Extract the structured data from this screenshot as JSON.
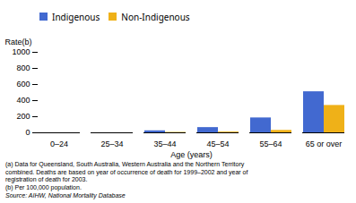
{
  "chart_data": {
    "type": "bar",
    "categories": [
      "0–24",
      "25–34",
      "35–44",
      "45–54",
      "55–64",
      "65 or over"
    ],
    "series": [
      {
        "name": "Indigenous",
        "values": [
          0,
          0,
          25,
          65,
          185,
          510
        ]
      },
      {
        "name": "Non-Indigenous",
        "values": [
          0,
          0,
          5,
          10,
          30,
          340
        ]
      }
    ],
    "xlabel": "Age (years)",
    "ylabel": "Rate(b)",
    "ylim": [
      0,
      1000
    ],
    "yticks": [
      0,
      200,
      400,
      600,
      800,
      1000
    ],
    "legend": "top",
    "annotations": [
      "(a) Data for Queensland, South Australia, Western Australia and the Northern Territory",
      "combined. Deaths are based on year of occurrence of death for 1999–2002 and year of",
      "registration of death for 2003.",
      "(b) Per 100,000 population.",
      "Source: AIHW, National Mortality Database"
    ]
  }
}
